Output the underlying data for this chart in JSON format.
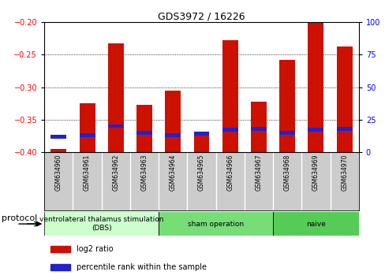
{
  "title": "GDS3972 / 16226",
  "samples": [
    "GSM634960",
    "GSM634961",
    "GSM634962",
    "GSM634963",
    "GSM634964",
    "GSM634965",
    "GSM634966",
    "GSM634967",
    "GSM634968",
    "GSM634969",
    "GSM634970"
  ],
  "log2_ratio": [
    -0.395,
    -0.325,
    -0.232,
    -0.327,
    -0.305,
    -0.375,
    -0.228,
    -0.322,
    -0.258,
    -0.2,
    -0.237
  ],
  "percentile_rank": [
    12,
    13,
    20,
    15,
    13,
    14,
    17,
    18,
    15,
    17,
    18
  ],
  "bar_color": "#cc1100",
  "blue_color": "#2222cc",
  "ylim_left": [
    -0.4,
    -0.2
  ],
  "ylim_right": [
    0,
    100
  ],
  "yticks_left": [
    -0.4,
    -0.35,
    -0.3,
    -0.25,
    -0.2
  ],
  "yticks_right": [
    0,
    25,
    50,
    75,
    100
  ],
  "group_defs": [
    {
      "start": 0,
      "end": 4,
      "label": "ventrolateral thalamus stimulation\n(DBS)",
      "color": "#ccffcc"
    },
    {
      "start": 4,
      "end": 8,
      "label": "sham operation",
      "color": "#77dd77"
    },
    {
      "start": 8,
      "end": 11,
      "label": "naive",
      "color": "#55cc55"
    }
  ],
  "protocol_label": "protocol",
  "legend_items": [
    {
      "color": "#cc1100",
      "label": "log2 ratio"
    },
    {
      "color": "#2222cc",
      "label": "percentile rank within the sample"
    }
  ],
  "bar_width": 0.55,
  "label_bg": "#cccccc",
  "plot_bg": "#ffffff",
  "title_fontsize": 9,
  "tick_fontsize": 7,
  "label_fontsize": 5.5,
  "proto_fontsize": 6.5,
  "legend_fontsize": 7
}
